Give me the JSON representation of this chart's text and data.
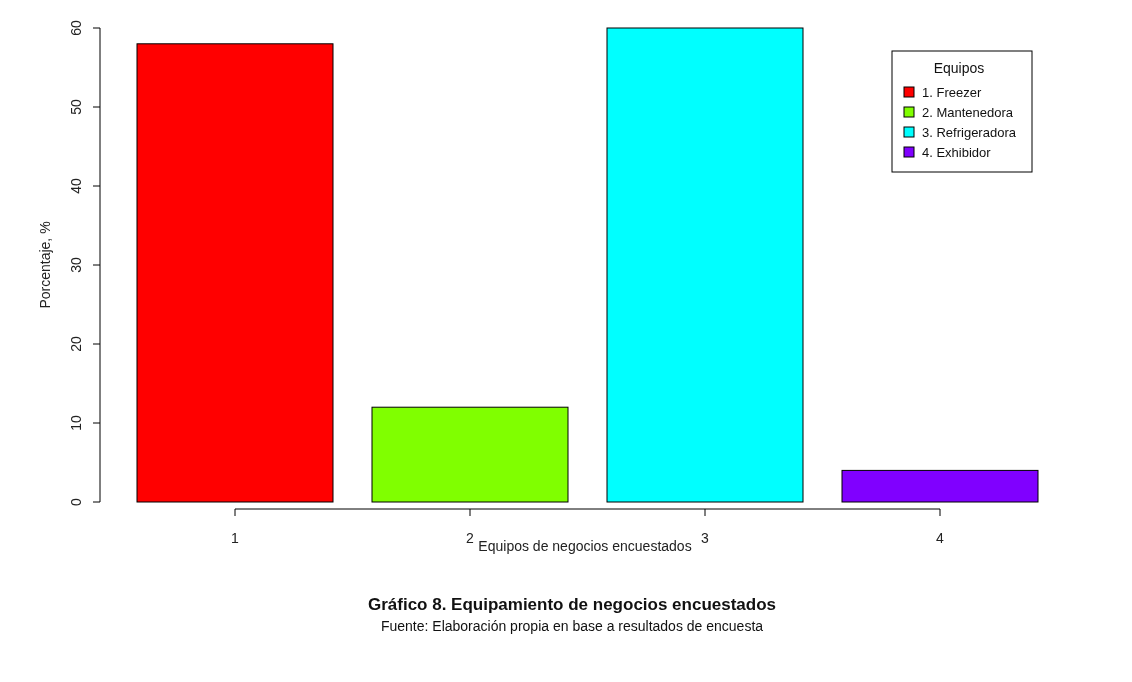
{
  "chart_data": {
    "type": "bar",
    "title": "Gráfico 8. Equipamiento de negocios encuestados",
    "annotations": [
      "Fuente: Elaboración propia en base a resultados de encuesta"
    ],
    "xlabel": "Equipos de negocios encuestados",
    "ylabel": "Porcentaje, %",
    "categories": [
      "1",
      "2",
      "3",
      "4"
    ],
    "series": [
      {
        "name": "1. Freezer",
        "color": "#ff0000",
        "values": [
          58,
          null,
          null,
          null
        ]
      },
      {
        "name": "2. Mantenedora",
        "color": "#80ff00",
        "values": [
          null,
          12,
          null,
          null
        ]
      },
      {
        "name": "3. Refrigeradora",
        "color": "#00ffff",
        "values": [
          null,
          null,
          60,
          null
        ]
      },
      {
        "name": "4. Exhibidor",
        "color": "#8000ff",
        "values": [
          null,
          null,
          null,
          4
        ]
      }
    ],
    "legend_title": "Equipos",
    "legend": "top right",
    "ylim": [
      0,
      60
    ],
    "yticks": [
      0,
      10,
      20,
      30,
      40,
      50,
      60
    ]
  }
}
